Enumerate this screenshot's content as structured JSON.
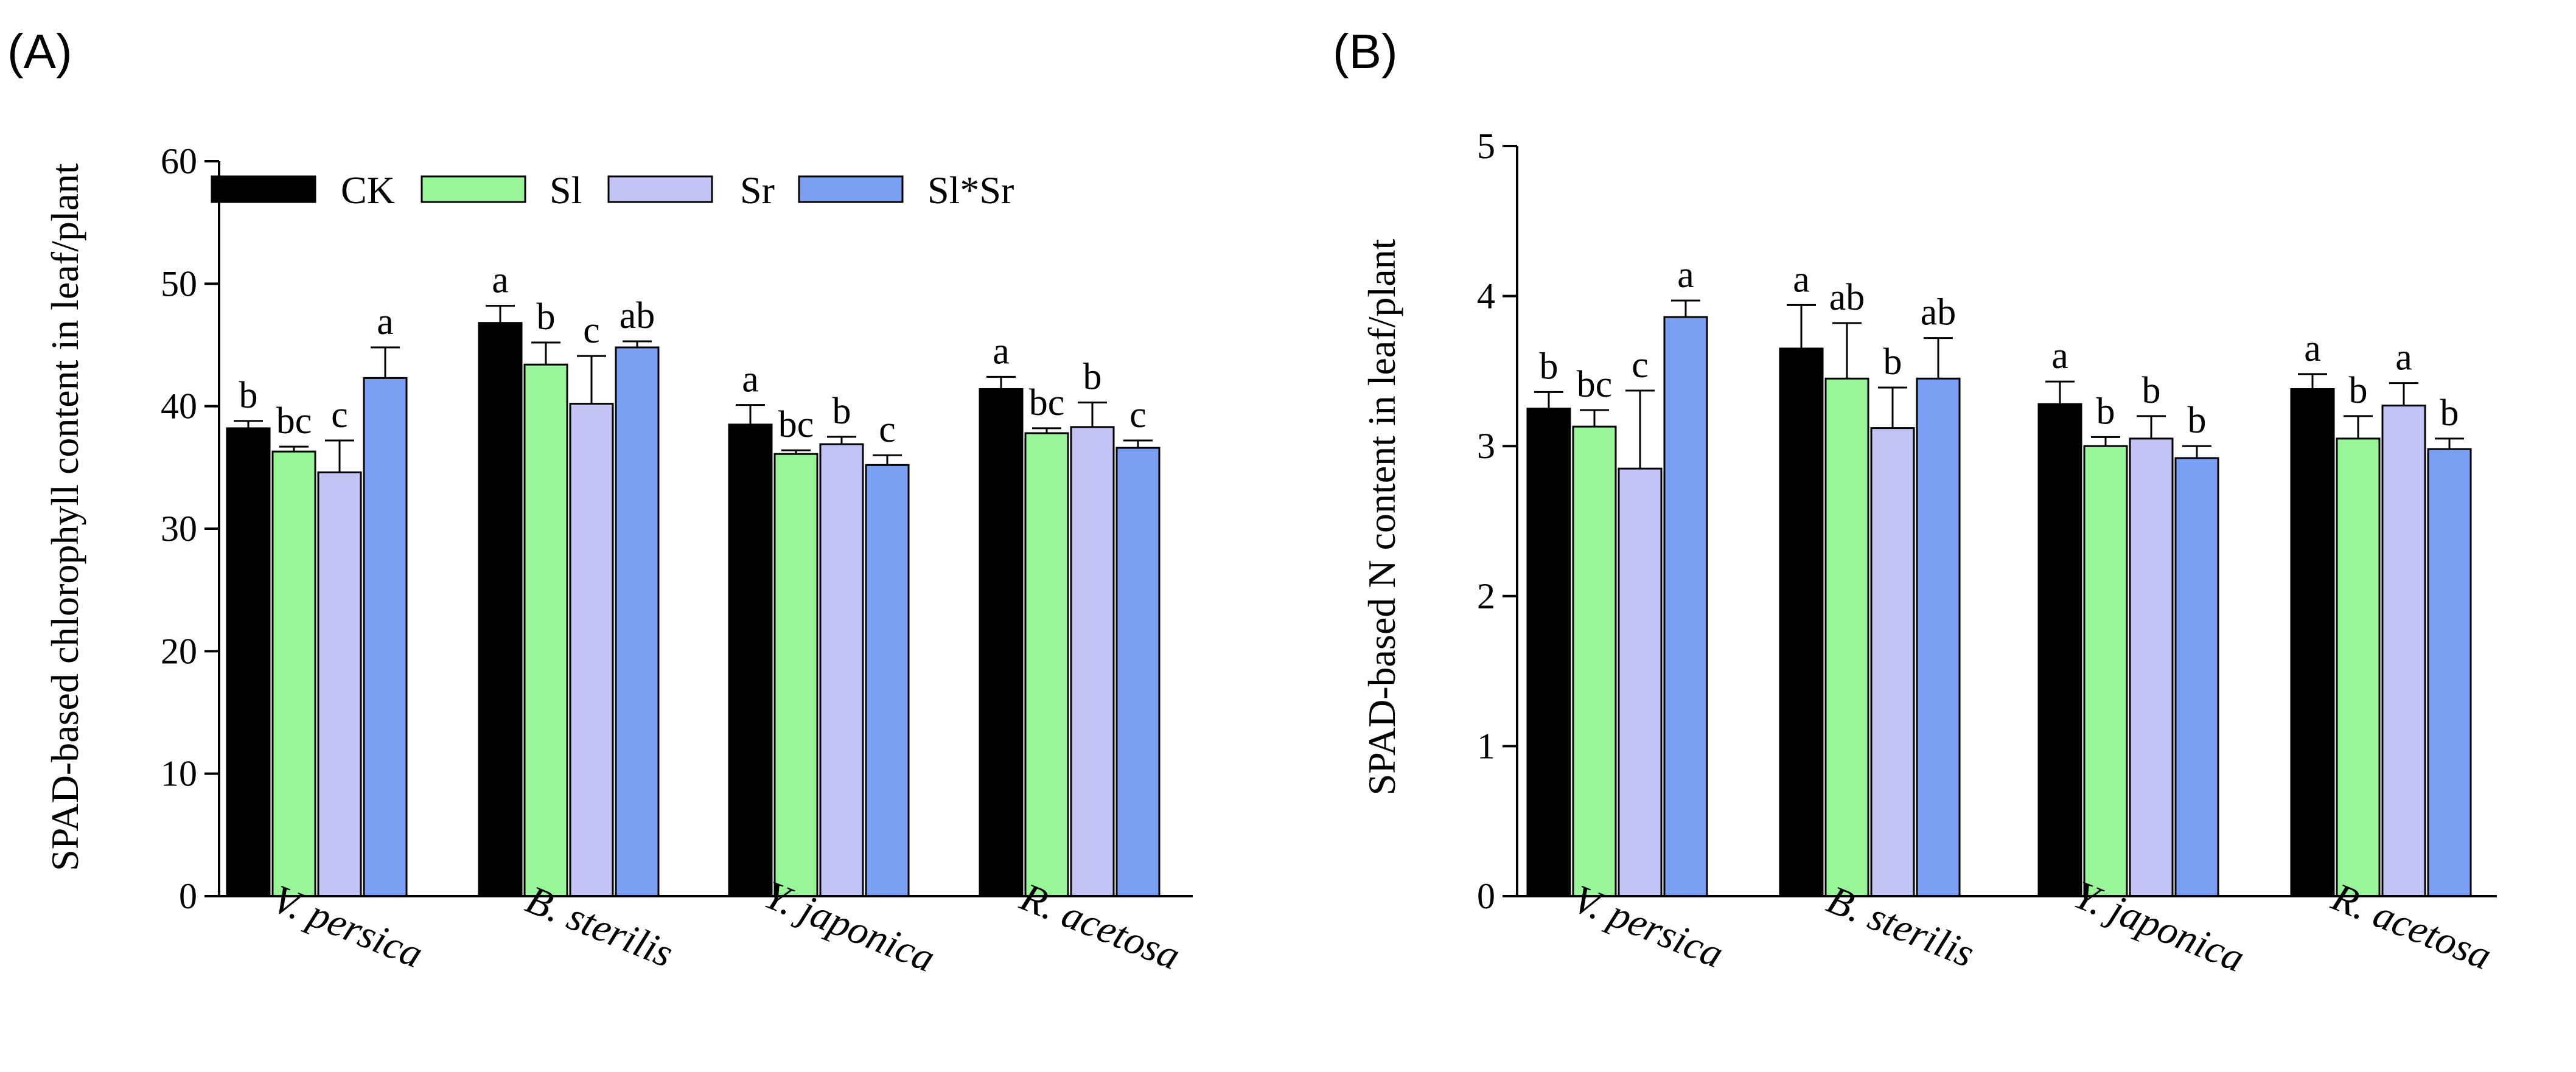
{
  "chart_data": [
    {
      "type": "bar",
      "panel": "(A)",
      "ylabel": "SPAD-based chlorophyll content in leaf/plant",
      "xlabel": "",
      "ylim": [
        0,
        60
      ],
      "yticks": [
        0,
        10,
        20,
        30,
        40,
        50,
        60
      ],
      "categories": [
        "V. persica",
        "B. sterilis",
        "Y. japonica",
        "R. acetosa"
      ],
      "legend": {
        "placement": "top-left",
        "entries": [
          "CK",
          "Sl",
          "Sr",
          "Sl*Sr"
        ]
      },
      "series": [
        {
          "name": "CK",
          "color": "#000000",
          "values": [
            38.2,
            46.8,
            38.5,
            41.4
          ],
          "errors": [
            0.6,
            1.4,
            1.6,
            1.0
          ],
          "letters": [
            "b",
            "a",
            "a",
            "a"
          ]
        },
        {
          "name": "Sl",
          "color": "#98f598",
          "values": [
            36.3,
            43.4,
            36.1,
            37.8
          ],
          "errors": [
            0.4,
            1.8,
            0.3,
            0.4
          ],
          "letters": [
            "bc",
            "b",
            "bc",
            "bc"
          ]
        },
        {
          "name": "Sr",
          "color": "#c3c3f5",
          "values": [
            34.6,
            40.2,
            36.9,
            38.3
          ],
          "errors": [
            2.6,
            3.9,
            0.6,
            2.0
          ],
          "letters": [
            "c",
            "c",
            "b",
            "b"
          ]
        },
        {
          "name": "Sl*Sr",
          "color": "#7a9ff3",
          "values": [
            42.3,
            44.8,
            35.2,
            36.6
          ],
          "errors": [
            2.5,
            0.5,
            0.8,
            0.6
          ],
          "letters": [
            "a",
            "ab",
            "c",
            "c"
          ]
        }
      ]
    },
    {
      "type": "bar",
      "panel": "(B)",
      "ylabel": "SPAD-based N content in leaf/plant",
      "xlabel": "",
      "ylim": [
        0,
        5
      ],
      "yticks": [
        0,
        1,
        2,
        3,
        4,
        5
      ],
      "categories": [
        "V. persica",
        "B. sterilis",
        "Y. japonica",
        "R. acetosa"
      ],
      "series": [
        {
          "name": "CK",
          "color": "#000000",
          "values": [
            3.25,
            3.65,
            3.28,
            3.38
          ],
          "errors": [
            0.11,
            0.29,
            0.15,
            0.1
          ],
          "letters": [
            "b",
            "a",
            "a",
            "a"
          ]
        },
        {
          "name": "Sl",
          "color": "#98f598",
          "values": [
            3.13,
            3.45,
            3.0,
            3.05
          ],
          "errors": [
            0.11,
            0.37,
            0.06,
            0.15
          ],
          "letters": [
            "bc",
            "ab",
            "b",
            "b"
          ]
        },
        {
          "name": "Sr",
          "color": "#c3c3f5",
          "values": [
            2.85,
            3.12,
            3.05,
            3.27
          ],
          "errors": [
            0.52,
            0.27,
            0.15,
            0.15
          ],
          "letters": [
            "c",
            "b",
            "b",
            "a"
          ]
        },
        {
          "name": "Sl*Sr",
          "color": "#7a9ff3",
          "values": [
            3.86,
            3.45,
            2.92,
            2.98
          ],
          "errors": [
            0.11,
            0.27,
            0.08,
            0.07
          ],
          "letters": [
            "a",
            "ab",
            "b",
            "b"
          ]
        }
      ]
    }
  ]
}
